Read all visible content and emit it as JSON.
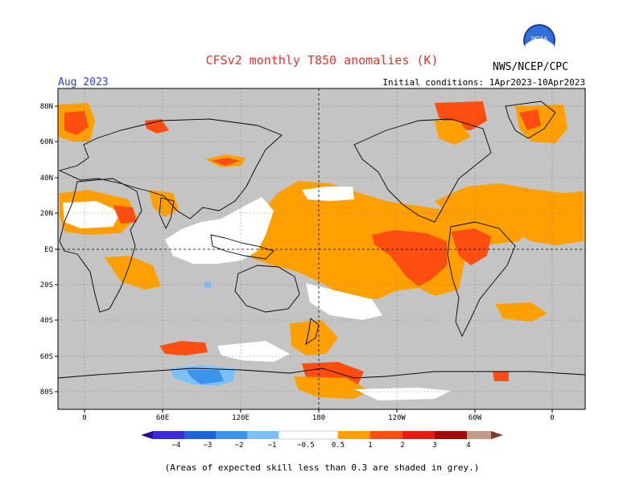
{
  "header": {
    "title": "CFSv2 monthly T850 anomalies (K)",
    "agency": "NWS/NCEP/CPC",
    "month": "Aug 2023",
    "initial_conditions": "Initial conditions: 1Apr2023-10Apr2023",
    "logo_text": "NOAA"
  },
  "map": {
    "lat_labels": [
      "80N",
      "60N",
      "40N",
      "20N",
      "EQ",
      "20S",
      "40S",
      "60S",
      "80S"
    ],
    "lon_labels": [
      "0",
      "60E",
      "120E",
      "180",
      "120W",
      "60W",
      "0"
    ]
  },
  "colorbar": {
    "labels": [
      "−4",
      "−3",
      "−2",
      "−1",
      "−0.5",
      "0.5",
      "1",
      "2",
      "3",
      "4"
    ]
  },
  "legend_colors": {
    "below_-4": "#2a0f9b",
    "-4_-3": "#3b2bd8",
    "-3_-2": "#1f63d8",
    "-2_-1": "#3a94ec",
    "-1_-0.5": "#7cc0f7",
    "neutral": "#ffffff",
    "0.5_1": "#ffa000",
    "1_2": "#ff4e10",
    "2_3": "#e81a12",
    "3_4": "#a6090a",
    "4_5": "#c49a88",
    "above_5": "#7b3b28",
    "low_skill_grey": "#c4c4c4"
  },
  "footnote": "(Areas of expected skill less than 0.3 are shaded in grey.)"
}
